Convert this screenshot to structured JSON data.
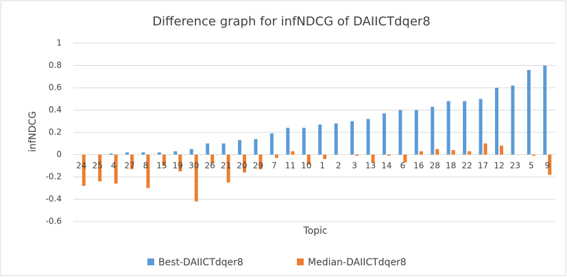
{
  "chart_data": {
    "type": "bar",
    "title": "Difference graph for infNDCG of DAIICTdqer8",
    "x_label": "Topic",
    "y_label": "infNDCG",
    "categories": [
      "24",
      "25",
      "4",
      "27",
      "8",
      "15",
      "19",
      "30",
      "26",
      "21",
      "20",
      "29",
      "7",
      "11",
      "10",
      "1",
      "2",
      "3",
      "13",
      "14",
      "6",
      "16",
      "28",
      "18",
      "22",
      "17",
      "12",
      "23",
      "5",
      "9"
    ],
    "series": [
      {
        "name": "Best-DAIICTdqer8",
        "color": "#5b9bd5",
        "values": [
          0,
          0,
          0.01,
          0.02,
          0.02,
          0.02,
          0.03,
          0.05,
          0.1,
          0.1,
          0.13,
          0.14,
          0.19,
          0.24,
          0.24,
          0.27,
          0.28,
          0.3,
          0.32,
          0.37,
          0.4,
          0.4,
          0.43,
          0.48,
          0.48,
          0.5,
          0.6,
          0.62,
          0.76,
          0.8
        ]
      },
      {
        "name": "Median-DAIICTdqer8",
        "color": "#ed7d31",
        "values": [
          -0.28,
          -0.24,
          -0.26,
          -0.13,
          -0.3,
          -0.1,
          -0.15,
          -0.42,
          -0.08,
          -0.25,
          -0.16,
          -0.13,
          -0.03,
          0.03,
          -0.09,
          -0.04,
          0,
          -0.01,
          -0.07,
          -0.01,
          -0.07,
          0.03,
          0.05,
          0.04,
          0.03,
          0.1,
          0.08,
          0,
          -0.01,
          -0.18
        ]
      }
    ],
    "ylim": [
      -0.6,
      1
    ],
    "yticks": [
      -0.6,
      -0.4,
      -0.2,
      0,
      0.2,
      0.4,
      0.6,
      0.8,
      1
    ],
    "grid": true,
    "legend": "bottom"
  }
}
